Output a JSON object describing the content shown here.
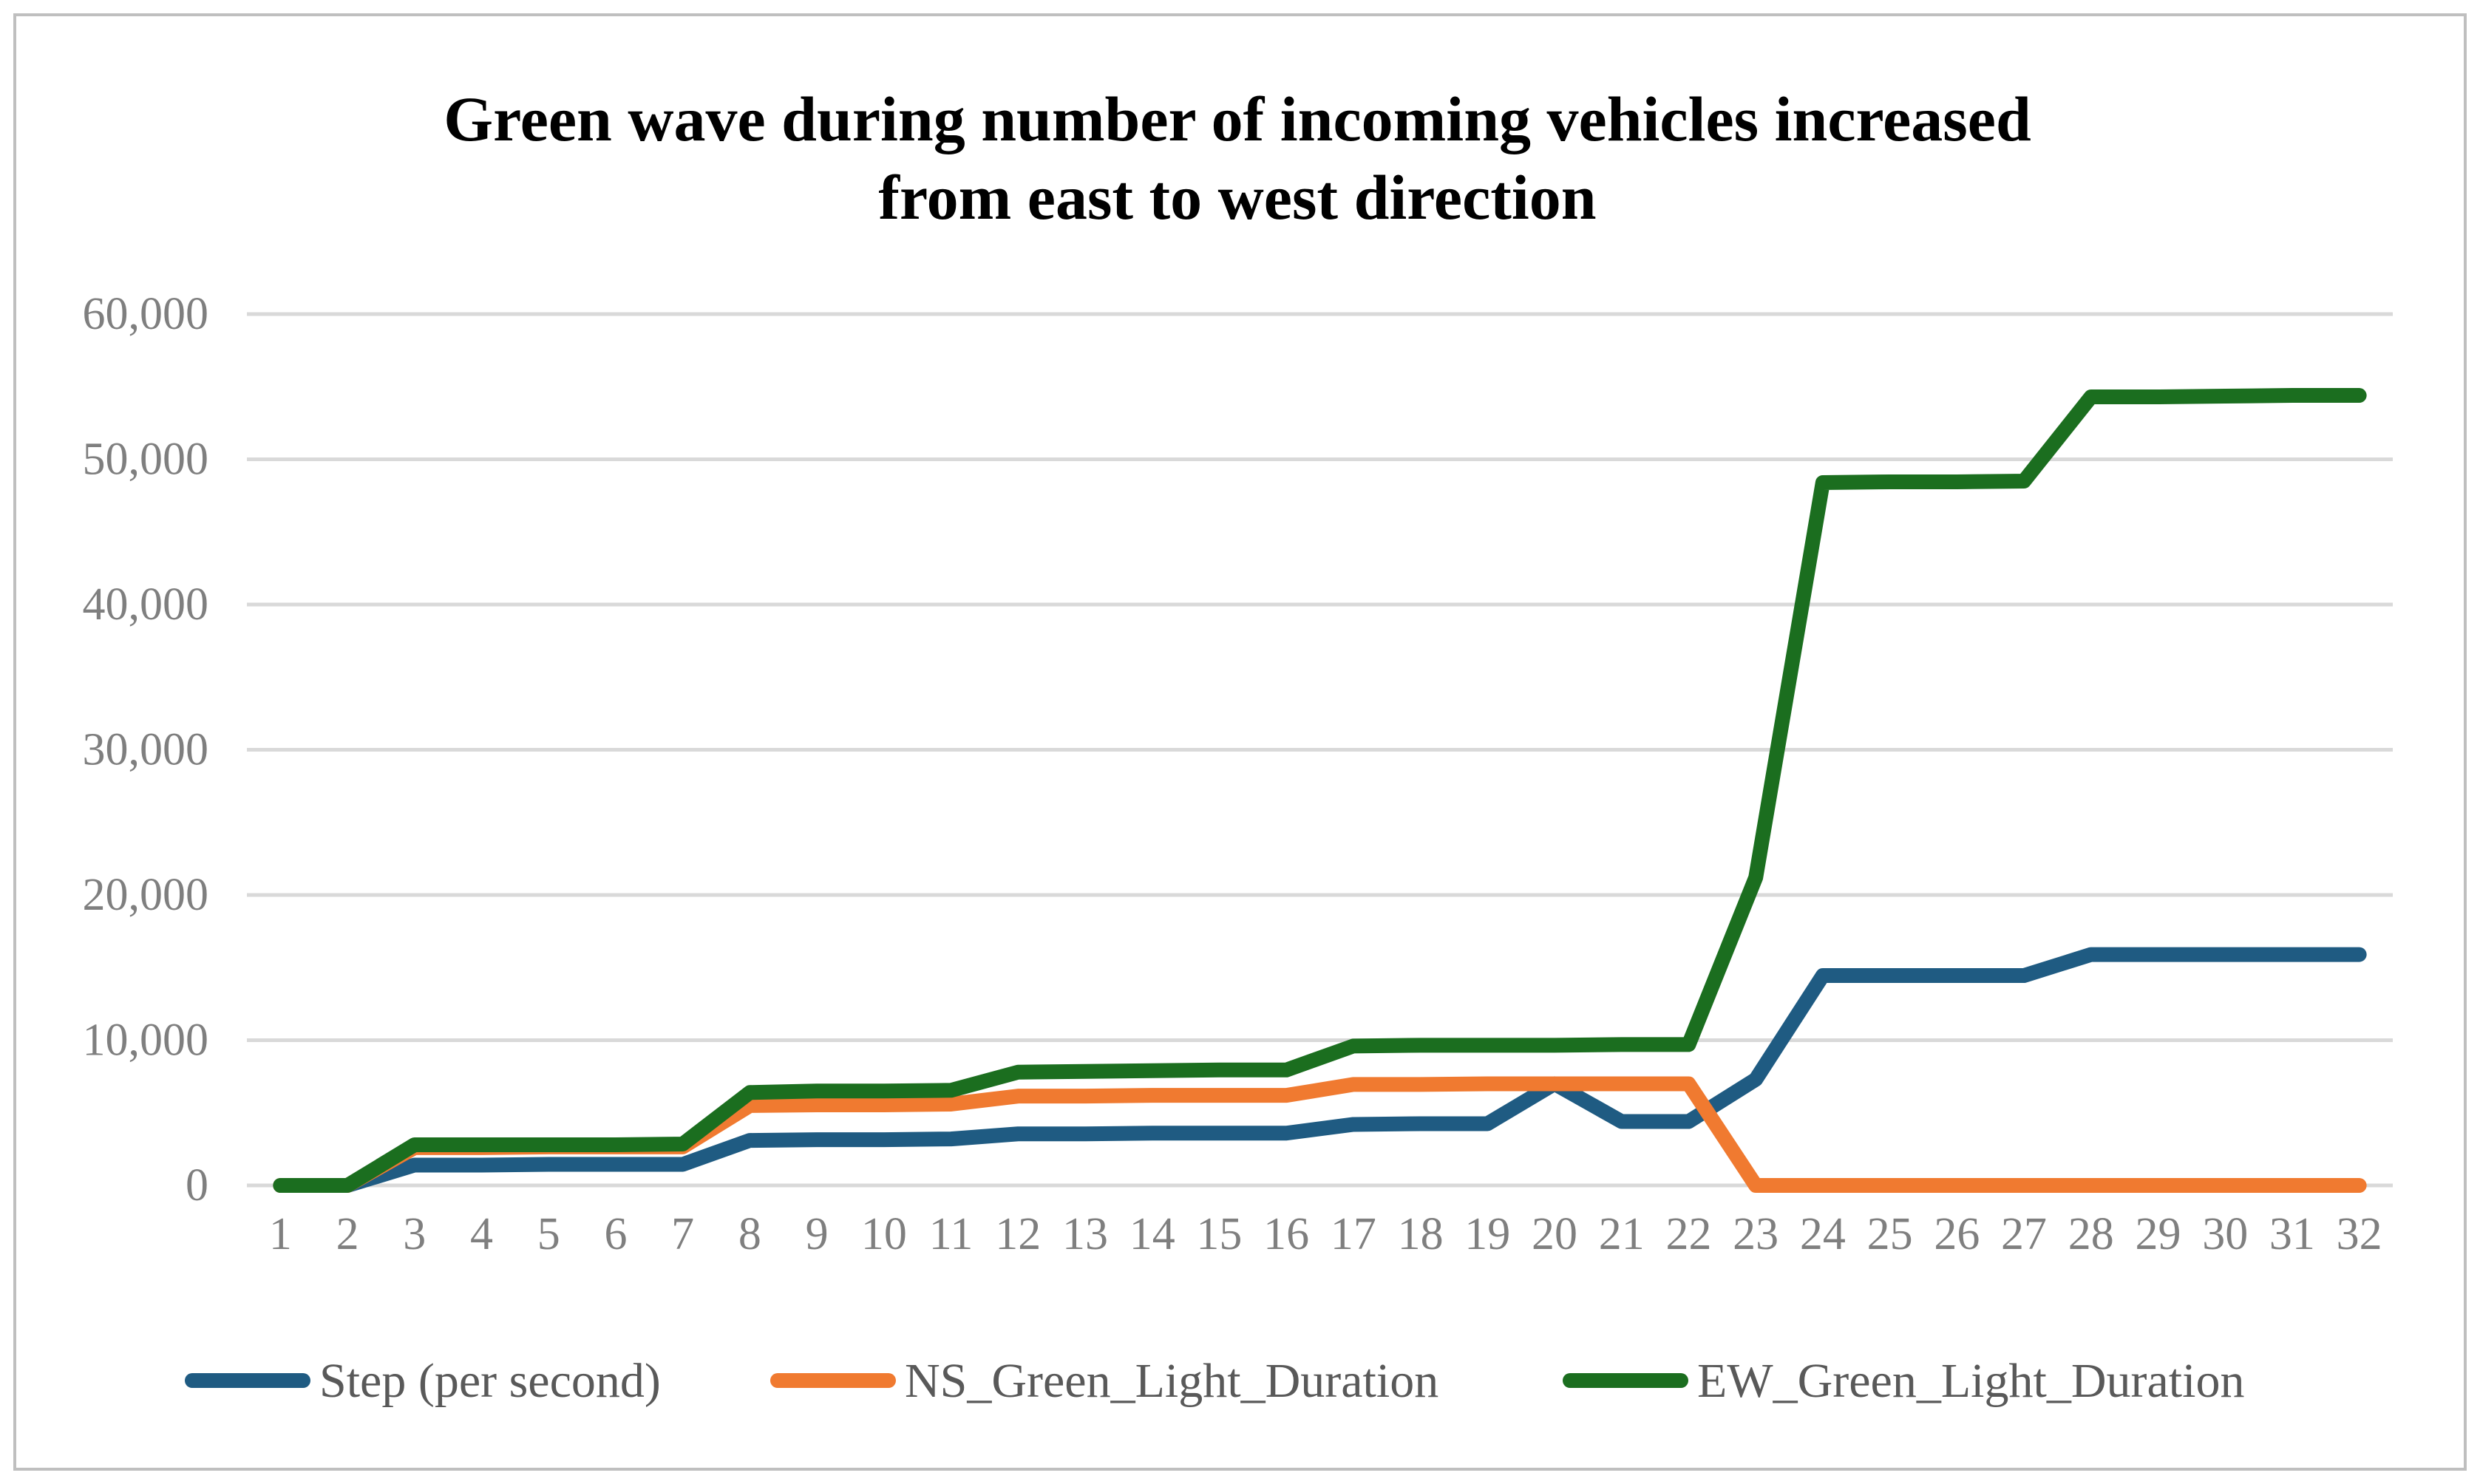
{
  "chart_data": {
    "type": "line",
    "title": "Green wave during number of incoming vehicles increased from east to west direction",
    "title_lines": [
      "Green wave during number of incoming vehicles increased",
      "from east to west direction"
    ],
    "xlabel": "",
    "ylabel": "",
    "ylim": [
      0,
      60000
    ],
    "yticks": [
      0,
      10000,
      20000,
      30000,
      40000,
      50000,
      60000
    ],
    "ytick_labels": [
      "0",
      "10,000",
      "20,000",
      "30,000",
      "40,000",
      "50,000",
      "60,000"
    ],
    "grid": true,
    "legend_position": "bottom",
    "categories": [
      "1",
      "2",
      "3",
      "4",
      "5",
      "6",
      "7",
      "8",
      "9",
      "10",
      "11",
      "12",
      "13",
      "14",
      "15",
      "16",
      "17",
      "18",
      "19",
      "20",
      "21",
      "22",
      "23",
      "24",
      "25",
      "26",
      "27",
      "28",
      "29",
      "30",
      "31",
      "32"
    ],
    "series": [
      {
        "name": "Step (per second)",
        "color": "#1f5b82",
        "values": [
          0,
          0,
          1400,
          1400,
          1450,
          1450,
          1450,
          3100,
          3150,
          3150,
          3200,
          3550,
          3550,
          3600,
          3600,
          3600,
          4200,
          4250,
          4250,
          7000,
          4400,
          4400,
          7300,
          14450,
          14450,
          14450,
          14450,
          15900,
          15900,
          15900,
          15900,
          15900
        ]
      },
      {
        "name": "NS_Green_Light_Duration",
        "color": "#f07a30",
        "values": [
          0,
          0,
          2600,
          2600,
          2650,
          2650,
          2650,
          5500,
          5550,
          5550,
          5600,
          6150,
          6150,
          6200,
          6200,
          6200,
          6950,
          6950,
          7000,
          7000,
          7000,
          7000,
          0,
          0,
          0,
          0,
          0,
          0,
          0,
          0,
          0,
          0
        ]
      },
      {
        "name": "EW_Green_Light_Duration",
        "color": "#1b6e1f",
        "values": [
          0,
          0,
          2800,
          2800,
          2800,
          2800,
          2850,
          6400,
          6500,
          6500,
          6550,
          7800,
          7850,
          7900,
          7950,
          7950,
          9600,
          9650,
          9650,
          9650,
          9700,
          9700,
          21200,
          48400,
          48450,
          48450,
          48500,
          54300,
          54300,
          54350,
          54400,
          54400
        ]
      }
    ]
  }
}
